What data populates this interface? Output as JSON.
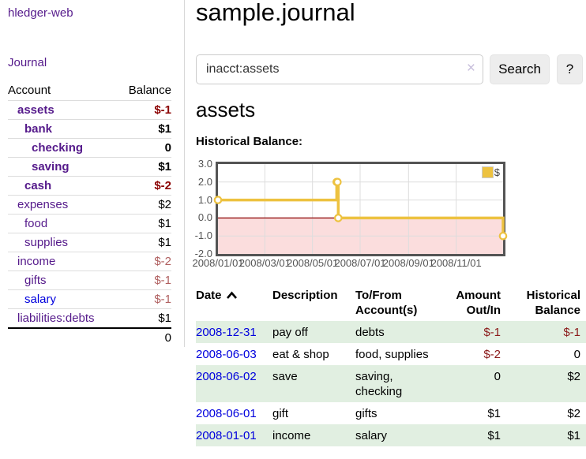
{
  "app": {
    "title": "hledger-web",
    "nav_journal": "Journal"
  },
  "colors": {
    "link_purple": "#551a8b",
    "link_blue": "#0000dd",
    "negative_strong": "#8b0000",
    "negative_muted": "#b06060",
    "negative": "#8b1a1a",
    "row_stripe_green": "#e1efe1"
  },
  "sidebar": {
    "accounts_header": {
      "account": "Account",
      "balance": "Balance"
    },
    "accounts": [
      {
        "name": "assets",
        "balance": "$-1",
        "depth": 1,
        "bold": true,
        "neg": "strong"
      },
      {
        "name": "bank",
        "balance": "$1",
        "depth": 2,
        "bold": true,
        "neg": "none"
      },
      {
        "name": "checking",
        "balance": "0",
        "depth": 3,
        "bold": true,
        "neg": "none"
      },
      {
        "name": "saving",
        "balance": "$1",
        "depth": 3,
        "bold": true,
        "neg": "none"
      },
      {
        "name": "cash",
        "balance": "$-2",
        "depth": 2,
        "bold": true,
        "neg": "strong"
      },
      {
        "name": "expenses",
        "balance": "$2",
        "depth": 1,
        "bold": false,
        "neg": "none"
      },
      {
        "name": "food",
        "balance": "$1",
        "depth": 2,
        "bold": false,
        "neg": "none"
      },
      {
        "name": "supplies",
        "balance": "$1",
        "depth": 2,
        "bold": false,
        "neg": "none"
      },
      {
        "name": "income",
        "balance": "$-2",
        "depth": 1,
        "bold": false,
        "neg": "muted"
      },
      {
        "name": "gifts",
        "balance": "$-1",
        "depth": 2,
        "bold": false,
        "neg": "muted"
      },
      {
        "name": "salary",
        "balance": "$-1",
        "depth": 2,
        "bold": false,
        "neg": "muted",
        "link": "blue"
      },
      {
        "name": "liabilities:debts",
        "balance": "$1",
        "depth": 1,
        "bold": false,
        "neg": "none"
      }
    ],
    "total": "0"
  },
  "main": {
    "title": "sample.journal",
    "search": {
      "value": "inacct:assets",
      "clear_icon": "×",
      "button": "Search",
      "help_button": "?"
    },
    "account_title": "assets",
    "chart_label": "Historical Balance:"
  },
  "chart_data": {
    "type": "line",
    "title": "Historical Balance",
    "line_style": "step",
    "x_start": "2008-01-01",
    "x_end": "2008-12-31",
    "ylim": [
      -2.0,
      3.0
    ],
    "y_ticks": [
      "3.0",
      "2.0",
      "1.0",
      "0.0",
      "-1.0",
      "-2.0"
    ],
    "x_ticks": [
      "2008/01/01",
      "2008/03/01",
      "2008/05/01",
      "2008/07/01",
      "2008/09/01",
      "2008/11/01"
    ],
    "grid": true,
    "legend_position": "top-right",
    "series": [
      {
        "name": "$",
        "color": "#edc240",
        "points": [
          {
            "date": "2008-01-01",
            "value": 1
          },
          {
            "date": "2008-06-01",
            "value": 2
          },
          {
            "date": "2008-06-02",
            "value": 2
          },
          {
            "date": "2008-06-03",
            "value": 0
          },
          {
            "date": "2008-12-31",
            "value": -1
          }
        ]
      }
    ],
    "negative_fill": "#fbdddd",
    "zero_line_color": "#8b0000",
    "grid_color": "#dddddd"
  },
  "register_table": {
    "headers": [
      {
        "lines": [
          "Date"
        ],
        "sort": "ascending"
      },
      {
        "lines": [
          "Description"
        ]
      },
      {
        "lines": [
          "To/From",
          "Account(s)"
        ]
      },
      {
        "lines": [
          "Amount",
          "Out/In"
        ]
      },
      {
        "lines": [
          "Historical",
          "Balance"
        ]
      }
    ],
    "rows": [
      {
        "date": "2008-12-31",
        "description": "pay off",
        "accounts": "debts",
        "amount": "$-1",
        "amount_neg": true,
        "balance": "$-1",
        "balance_neg": true
      },
      {
        "date": "2008-06-03",
        "description": "eat & shop",
        "accounts": "food, supplies",
        "amount": "$-2",
        "amount_neg": true,
        "balance": "0",
        "balance_neg": false
      },
      {
        "date": "2008-06-02",
        "description": "save",
        "accounts": "saving, checking",
        "amount": "0",
        "amount_neg": false,
        "balance": "$2",
        "balance_neg": false
      },
      {
        "date": "2008-06-01",
        "description": "gift",
        "accounts": "gifts",
        "amount": "$1",
        "amount_neg": false,
        "balance": "$2",
        "balance_neg": false
      },
      {
        "date": "2008-01-01",
        "description": "income",
        "accounts": "salary",
        "amount": "$1",
        "amount_neg": false,
        "balance": "$1",
        "balance_neg": false
      }
    ]
  }
}
